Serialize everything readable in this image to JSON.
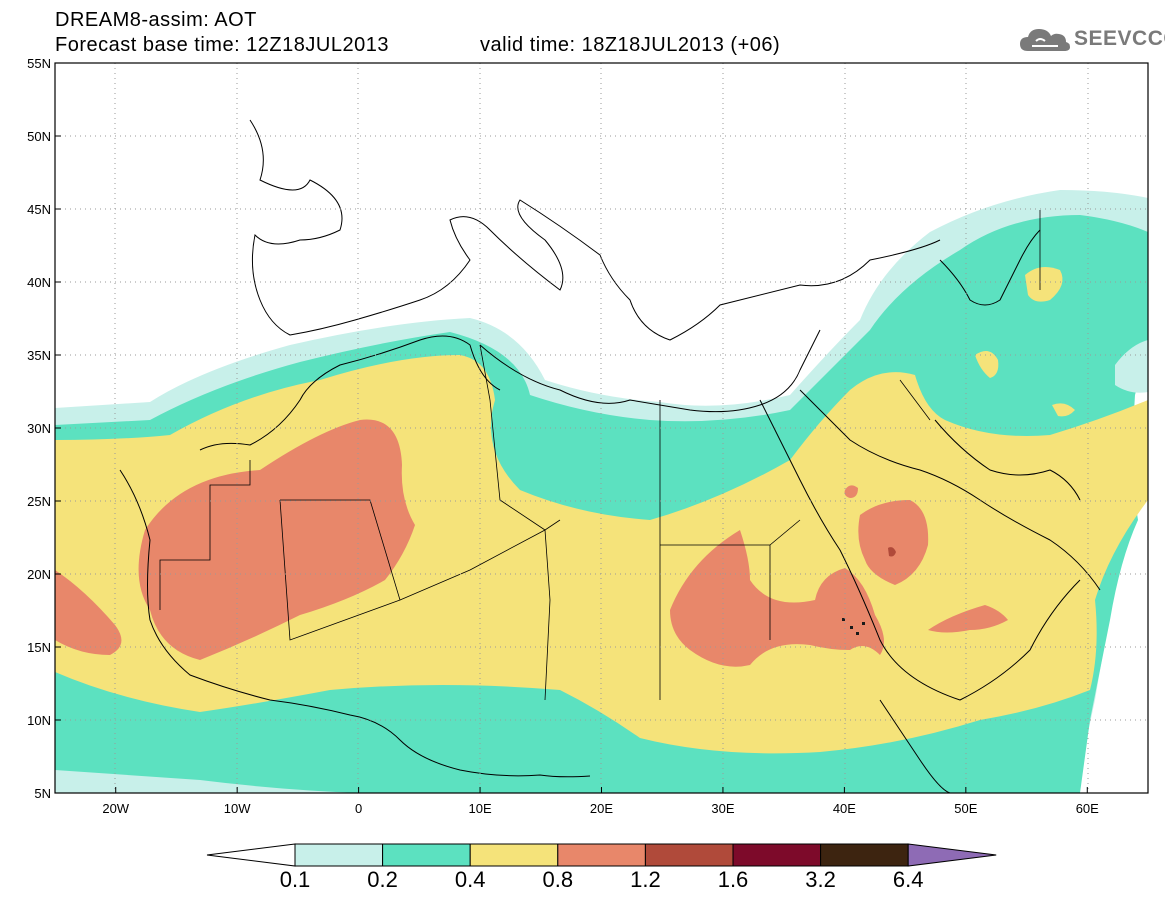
{
  "header": {
    "line1": "DREAM8-assim: AOT",
    "line2": "Forecast base time: 12Z18JUL2013",
    "line3": "valid time: 18Z18JUL2013 (+06)"
  },
  "logo": {
    "text": "SEEVCCC",
    "icon": "cloud-icon"
  },
  "axes": {
    "lon_ticks": [
      "20W",
      "10W",
      "0",
      "10E",
      "20E",
      "30E",
      "40E",
      "50E",
      "60E"
    ],
    "lat_ticks": [
      "55N",
      "50N",
      "45N",
      "40N",
      "35N",
      "30N",
      "25N",
      "20N",
      "15N",
      "10N",
      "5N"
    ],
    "lon_range": [
      -25,
      65
    ],
    "lat_range": [
      5,
      55
    ]
  },
  "colorbar": {
    "levels": [
      "0.1",
      "0.2",
      "0.4",
      "0.8",
      "1.2",
      "1.6",
      "3.2",
      "6.4"
    ],
    "colors": [
      "#ffffff",
      "#c8f0ea",
      "#5ce1c0",
      "#f5e37a",
      "#e8876a",
      "#b04a3a",
      "#7d0a2a",
      "#3d2410",
      "#8e6bb5"
    ]
  }
}
